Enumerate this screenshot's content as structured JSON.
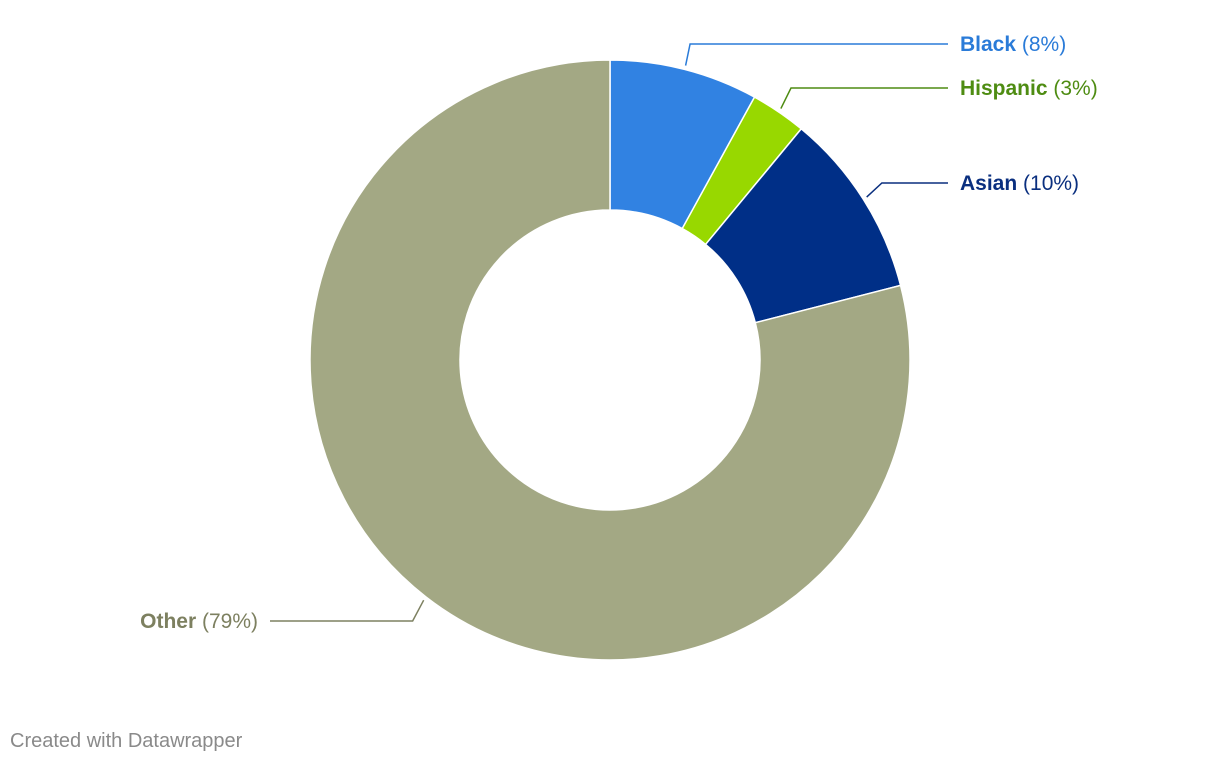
{
  "chart_data": {
    "type": "pie",
    "donut": true,
    "slices": [
      {
        "label": "Black",
        "value": 8,
        "value_label": "(8%)",
        "color": "#3182e2",
        "label_color": "#2a7bd8"
      },
      {
        "label": "Hispanic",
        "value": 3,
        "value_label": "(3%)",
        "color": "#98d800",
        "label_color": "#4e8c12"
      },
      {
        "label": "Asian",
        "value": 10,
        "value_label": "(10%)",
        "color": "#002f87",
        "label_color": "#0a2f7f"
      },
      {
        "label": "Other",
        "value": 79,
        "value_label": "(79%)",
        "color": "#a3a884",
        "label_color": "#7d8060"
      }
    ]
  },
  "footer": {
    "credit": "Created with Datawrapper"
  }
}
